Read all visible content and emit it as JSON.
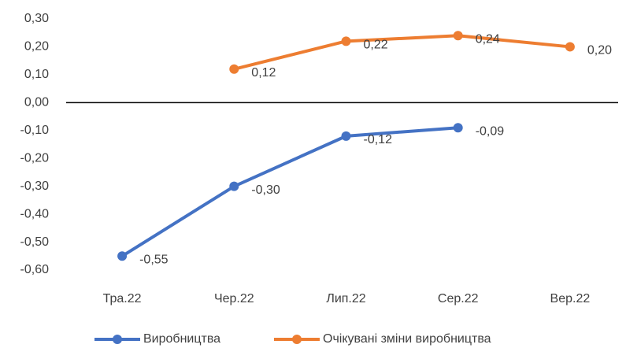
{
  "chart_data": {
    "type": "line",
    "categories": [
      "Тра.22",
      "Чер.22",
      "Лип.22",
      "Сер.22",
      "Вер.22"
    ],
    "series": [
      {
        "name": "Виробництва",
        "color": "#4472c4",
        "values": [
          -0.55,
          -0.3,
          -0.12,
          -0.09,
          null
        ],
        "value_labels": [
          "-0,55",
          "-0,30",
          "-0,12",
          "-0,09",
          null
        ]
      },
      {
        "name": "Очікувані зміни виробництва",
        "color": "#ed7d31",
        "values": [
          null,
          0.12,
          0.22,
          0.24,
          0.2
        ],
        "value_labels": [
          null,
          "0,12",
          "0,22",
          "0,24",
          "0,20"
        ]
      }
    ],
    "ylim": [
      -0.6,
      0.3
    ],
    "yticks": [
      {
        "value": 0.3,
        "label": "0,30"
      },
      {
        "value": 0.2,
        "label": "0,20"
      },
      {
        "value": 0.1,
        "label": "0,10"
      },
      {
        "value": 0,
        "label": "0,00"
      },
      {
        "value": -0.1,
        "label": "-0,10"
      },
      {
        "value": -0.2,
        "label": "-0,20"
      },
      {
        "value": -0.3,
        "label": "-0,30"
      },
      {
        "value": -0.4,
        "label": "-0,40"
      },
      {
        "value": -0.5,
        "label": "-0,50"
      },
      {
        "value": -0.6,
        "label": "-0,60"
      }
    ],
    "grid": false,
    "legend": "bottom"
  }
}
